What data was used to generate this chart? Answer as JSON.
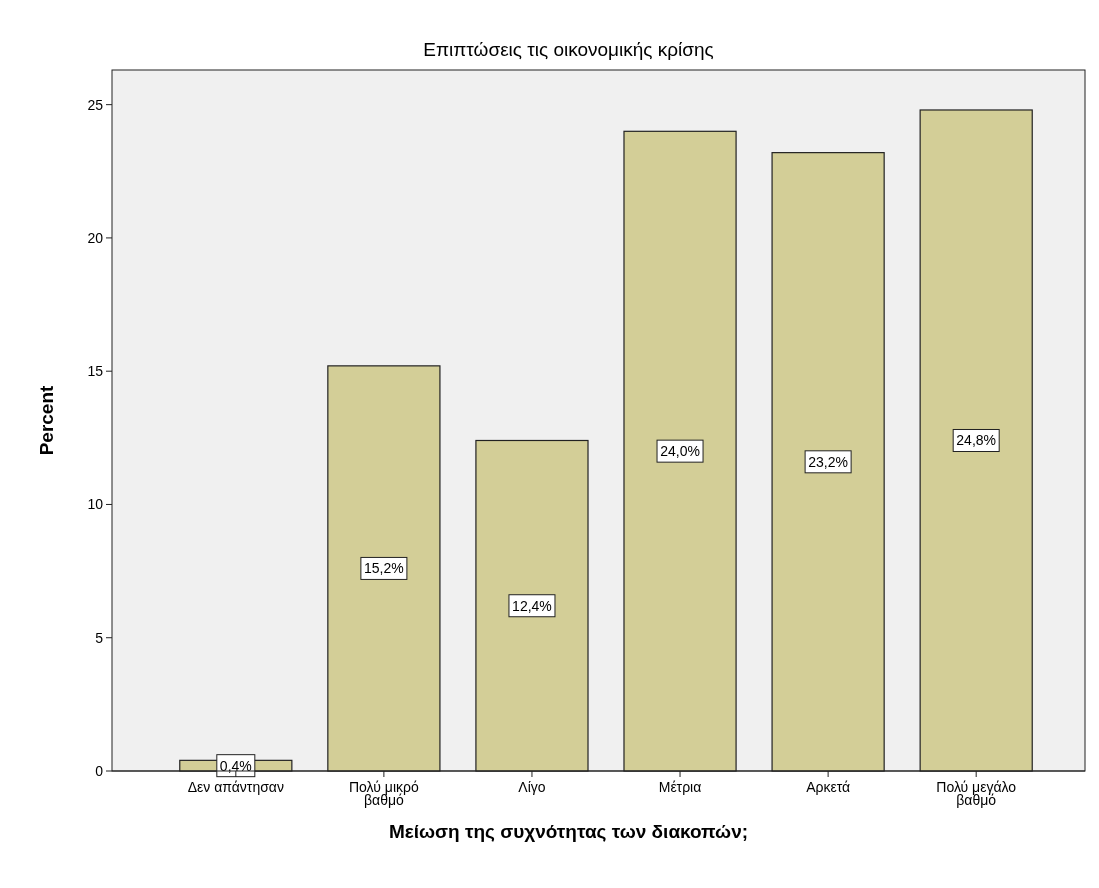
{
  "chart_data": {
    "type": "bar",
    "title": "Επιπτώσεις τις οικονομικής κρίσης",
    "xlabel": "Μείωση της συχνότητας των διακοπών;",
    "ylabel": "Percent",
    "categories": [
      "Δεν απάντησαν",
      "Πολύ μικρό βαθμό",
      "Λίγο",
      "Μέτρια",
      "Αρκετά",
      "Πολύ μεγάλο βαθμό"
    ],
    "values": [
      0.4,
      15.2,
      12.4,
      24.0,
      23.2,
      24.8
    ],
    "value_labels": [
      "0,4%",
      "15,2%",
      "12,4%",
      "24,0%",
      "23,2%",
      "24,8%"
    ],
    "color": "#d3ce97",
    "ylim": [
      0,
      26.3
    ],
    "yticks": [
      0,
      5,
      10,
      15,
      20,
      25
    ],
    "grid": false
  }
}
